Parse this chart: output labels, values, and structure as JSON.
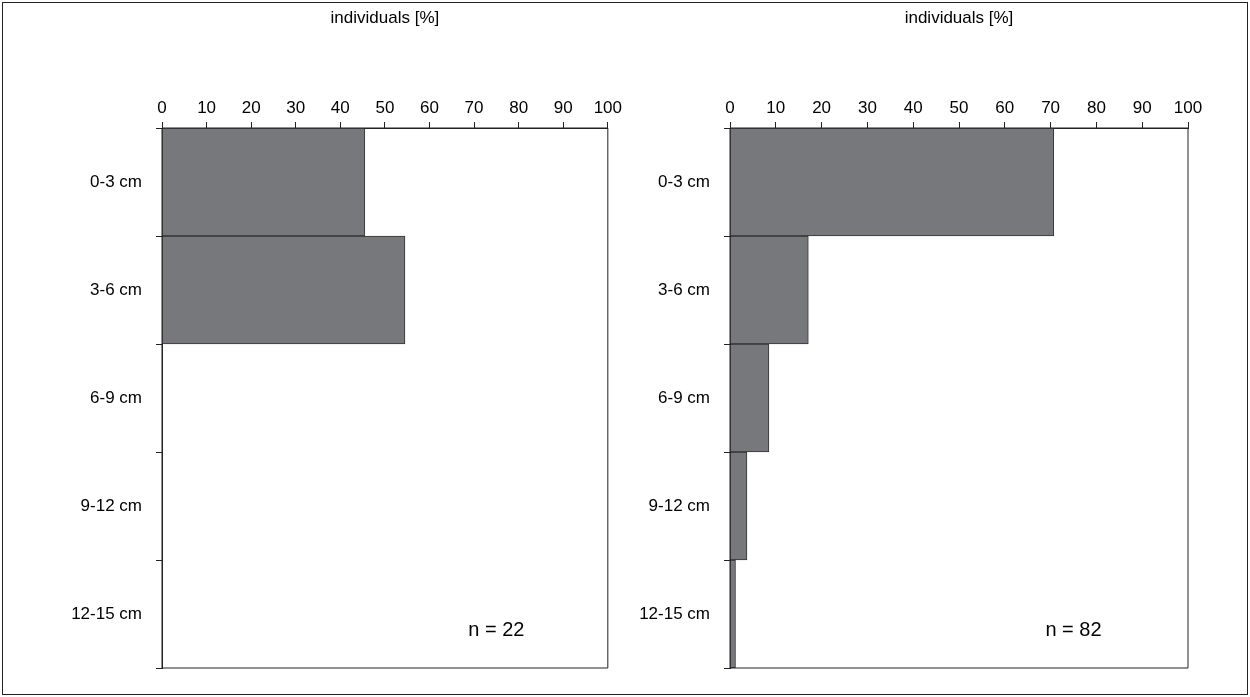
{
  "chart_data": [
    {
      "type": "bar",
      "orientation": "horizontal",
      "xlabel": "individuals [%]",
      "categories": [
        "0-3 cm",
        "3-6 cm",
        "6-9 cm",
        "9-12 cm",
        "12-15 cm"
      ],
      "values": [
        45.5,
        54.5,
        0,
        0,
        0
      ],
      "color": "#77787c",
      "xlim": [
        0,
        100
      ],
      "xticks": [
        0,
        10,
        20,
        30,
        40,
        50,
        60,
        70,
        80,
        90,
        100
      ],
      "grid": false,
      "legend": false,
      "annotations": [
        "n = 22"
      ]
    },
    {
      "type": "bar",
      "orientation": "horizontal",
      "xlabel": "individuals [%]",
      "categories": [
        "0-3 cm",
        "3-6 cm",
        "6-9 cm",
        "9-12 cm",
        "12-15 cm"
      ],
      "values": [
        70.7,
        17.1,
        8.5,
        3.7,
        1.2
      ],
      "color": "#77787c",
      "xlim": [
        0,
        100
      ],
      "xticks": [
        0,
        10,
        20,
        30,
        40,
        50,
        60,
        70,
        80,
        90,
        100
      ],
      "grid": false,
      "legend": false,
      "annotations": [
        "n = 82"
      ]
    }
  ]
}
